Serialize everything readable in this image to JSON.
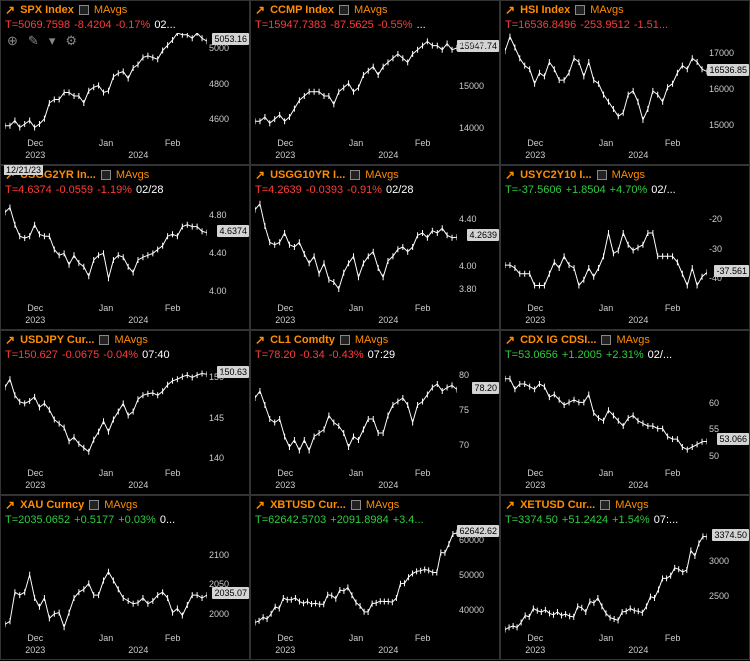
{
  "xaxis": {
    "ticks": [
      {
        "pos": 15,
        "label": "Dec"
      },
      {
        "pos": 50,
        "label": "Jan"
      },
      {
        "pos": 83,
        "label": "Feb"
      }
    ],
    "years": [
      {
        "pos": 15,
        "label": "2023"
      },
      {
        "pos": 66,
        "label": "2024"
      }
    ]
  },
  "panels": [
    {
      "symbol": "SPX Index",
      "mavgs": "MAvgs",
      "last": "T=5069.7598",
      "chg": "-8.4204",
      "pct": "-0.17%",
      "time": "02...",
      "dir": "down",
      "yticks": [
        {
          "v": 5000,
          "l": "5000"
        },
        {
          "v": 4800,
          "l": "4800"
        },
        {
          "v": 4600,
          "l": "4600"
        }
      ],
      "ylim": [
        4500,
        5100
      ],
      "tag": "5053.16",
      "tagv": 5053,
      "series": [
        4570,
        4570,
        4600,
        4560,
        4580,
        4600,
        4560,
        4580,
        4610,
        4700,
        4720,
        4720,
        4760,
        4760,
        4740,
        4740,
        4700,
        4770,
        4790,
        4800,
        4760,
        4770,
        4850,
        4870,
        4880,
        4840,
        4900,
        4920,
        4960,
        4970,
        4960,
        4950,
        5000,
        5030,
        5060,
        5100,
        5090,
        5090,
        5070,
        5100,
        5070,
        5053
      ],
      "toolbar": true,
      "datebadge": "12/21/23"
    },
    {
      "symbol": "CCMP Index",
      "mavgs": "MAvgs",
      "last": "T=15947.7383",
      "chg": "-87.5625",
      "pct": "-0.55%",
      "time": "...",
      "dir": "down",
      "yticks": [
        {
          "v": 16000,
          "l": "16000"
        },
        {
          "v": 15000,
          "l": "15000"
        },
        {
          "v": 14000,
          "l": "14000"
        }
      ],
      "ylim": [
        13800,
        16300
      ],
      "tag": "15947.74",
      "tagv": 15947,
      "series": [
        14200,
        14200,
        14300,
        14150,
        14250,
        14350,
        14200,
        14300,
        14500,
        14700,
        14800,
        14900,
        14900,
        14900,
        14800,
        14800,
        14600,
        14900,
        15000,
        15100,
        14900,
        15000,
        15300,
        15400,
        15500,
        15300,
        15500,
        15600,
        15700,
        15800,
        15700,
        15600,
        15800,
        15900,
        16000,
        16100,
        16000,
        16000,
        15900,
        16050,
        15900,
        15947
      ]
    },
    {
      "symbol": "HSI Index",
      "mavgs": "MAvgs",
      "last": "T=16536.8496",
      "chg": "-253.9512",
      "pct": "-1.51...",
      "time": "",
      "dir": "down",
      "yticks": [
        {
          "v": 17000,
          "l": "17000"
        },
        {
          "v": 16000,
          "l": "16000"
        },
        {
          "v": 15000,
          "l": "15000"
        }
      ],
      "ylim": [
        14700,
        17600
      ],
      "tag": "16536.85",
      "tagv": 16536,
      "series": [
        17100,
        17500,
        17200,
        16900,
        16700,
        16600,
        16200,
        16500,
        16400,
        16800,
        16600,
        16300,
        16300,
        16500,
        16900,
        16800,
        16400,
        16800,
        16300,
        16200,
        15900,
        15700,
        15500,
        15300,
        15400,
        15900,
        16000,
        15700,
        15200,
        15500,
        16000,
        15900,
        15700,
        16100,
        16200,
        16500,
        16700,
        16600,
        16900,
        16800,
        16600,
        16536
      ]
    },
    {
      "symbol": "USGG2YR In...",
      "mavgs": "MAvgs",
      "last": "T=4.6374",
      "chg": "-0.0559",
      "pct": "-1.19%",
      "time": "02/28",
      "dir": "down",
      "yticks": [
        {
          "v": 4.8,
          "l": "4.80"
        },
        {
          "v": 4.4,
          "l": "4.40"
        },
        {
          "v": 4.0,
          "l": "4.00"
        }
      ],
      "ylim": [
        3.9,
        5.0
      ],
      "tag": "4.6374",
      "tagv": 4.6374,
      "series": [
        4.85,
        4.9,
        4.72,
        4.6,
        4.58,
        4.6,
        4.72,
        4.62,
        4.6,
        4.6,
        4.46,
        4.4,
        4.42,
        4.3,
        4.4,
        4.32,
        4.28,
        4.18,
        4.35,
        4.4,
        4.42,
        4.16,
        4.35,
        4.4,
        4.38,
        4.28,
        4.22,
        4.35,
        4.38,
        4.4,
        4.42,
        4.46,
        4.5,
        4.6,
        4.62,
        4.6,
        4.7,
        4.72,
        4.7,
        4.7,
        4.65,
        4.6374
      ]
    },
    {
      "symbol": "USGG10YR I...",
      "mavgs": "MAvgs",
      "last": "T=4.2639",
      "chg": "-0.0393",
      "pct": "-0.91%",
      "time": "02/28",
      "dir": "down",
      "yticks": [
        {
          "v": 4.4,
          "l": "4.40"
        },
        {
          "v": 4.0,
          "l": "4.00"
        },
        {
          "v": 3.8,
          "l": "3.80"
        }
      ],
      "ylim": [
        3.7,
        4.6
      ],
      "tag": "4.2639",
      "tagv": 4.2639,
      "series": [
        4.5,
        4.55,
        4.36,
        4.22,
        4.2,
        4.22,
        4.3,
        4.2,
        4.18,
        4.22,
        4.12,
        4.04,
        4.1,
        3.95,
        4.04,
        3.9,
        3.88,
        3.82,
        3.96,
        4.04,
        4.1,
        3.92,
        4.04,
        4.1,
        4.14,
        4.0,
        3.92,
        4.06,
        4.1,
        4.16,
        4.18,
        4.14,
        4.18,
        4.28,
        4.3,
        4.26,
        4.32,
        4.3,
        4.34,
        4.28,
        4.26,
        4.2639
      ]
    },
    {
      "symbol": "USYC2Y10 I...",
      "mavgs": "MAvgs",
      "last": "T=-37.5606",
      "chg": "+1.8504",
      "pct": "+4.70%",
      "time": "02/...",
      "dir": "up",
      "yticks": [
        {
          "v": -20,
          "l": "-20"
        },
        {
          "v": -30,
          "l": "-30"
        },
        {
          "v": -40,
          "l": "-40"
        }
      ],
      "ylim": [
        -48,
        -12
      ],
      "tag": "-37.561",
      "tagv": -37.561,
      "series": [
        -35,
        -35,
        -36,
        -38,
        -38,
        -38,
        -42,
        -42,
        -42,
        -38,
        -34,
        -36,
        -32,
        -35,
        -36,
        -42,
        -40,
        -36,
        -39,
        -36,
        -32,
        -24,
        -31,
        -30,
        -24,
        -28,
        -30,
        -29,
        -28,
        -24,
        -24,
        -32,
        -32,
        -32,
        -32,
        -34,
        -38,
        -42,
        -36,
        -42,
        -39,
        -37.5
      ]
    },
    {
      "symbol": "USDJPY Cur...",
      "mavgs": "MAvgs",
      "last": "T=150.627",
      "chg": "-0.0675",
      "pct": "-0.04%",
      "time": "07:40",
      "dir": "down",
      "yticks": [
        {
          "v": 150,
          "l": "150"
        },
        {
          "v": 145,
          "l": "145"
        },
        {
          "v": 140,
          "l": "140"
        }
      ],
      "ylim": [
        139,
        152
      ],
      "tag": "150.63",
      "tagv": 150.63,
      "series": [
        149,
        150,
        148,
        147.2,
        147,
        147.3,
        147.8,
        146.5,
        147,
        146.2,
        145,
        144.5,
        144,
        142.3,
        142.8,
        142,
        141.5,
        141,
        142.5,
        143.5,
        144.8,
        143.5,
        145,
        146,
        147,
        145.5,
        146,
        147.5,
        148,
        148.2,
        148.3,
        148,
        148.5,
        149.3,
        149.8,
        150,
        150.3,
        150.5,
        150.2,
        150.5,
        150.7,
        150.6
      ]
    },
    {
      "symbol": "CL1 Comdty",
      "mavgs": "MAvgs",
      "last": "T=78.20",
      "chg": "-0.34",
      "pct": "-0.43%",
      "time": "07:29",
      "dir": "down",
      "yticks": [
        {
          "v": 80,
          "l": "80"
        },
        {
          "v": 75,
          "l": "75"
        },
        {
          "v": 70,
          "l": "70"
        }
      ],
      "ylim": [
        67,
        82
      ],
      "tag": "78.20",
      "tagv": 78.2,
      "series": [
        77,
        78,
        76,
        74,
        73.5,
        74,
        71.5,
        70,
        71,
        69.5,
        71,
        69.5,
        71.5,
        72,
        72.5,
        74.5,
        73.5,
        73,
        72,
        70,
        71.5,
        71,
        72.5,
        74,
        74,
        72,
        72,
        74.5,
        76,
        76.5,
        77,
        76,
        73.5,
        76,
        76.5,
        77.5,
        78.5,
        79,
        78,
        78.5,
        78.8,
        78.2
      ]
    },
    {
      "symbol": "CDX IG CDSI...",
      "mavgs": "MAvgs",
      "last": "T=53.0656",
      "chg": "+1.2005",
      "pct": "+2.31%",
      "time": "02/...",
      "dir": "up",
      "yticks": [
        {
          "v": 60,
          "l": "60"
        },
        {
          "v": 55,
          "l": "55"
        },
        {
          "v": 50,
          "l": "50"
        }
      ],
      "ylim": [
        48,
        68
      ],
      "tag": "53.066",
      "tagv": 53.066,
      "series": [
        65,
        65,
        63,
        64,
        64,
        63.5,
        63,
        64,
        63.5,
        61.5,
        62,
        61,
        60,
        60.5,
        61,
        60.5,
        60.5,
        62,
        58.5,
        57.5,
        57,
        59,
        58,
        57,
        56,
        57.5,
        58,
        57,
        56.5,
        56,
        56,
        55.5,
        55.5,
        54,
        53.5,
        53.5,
        52,
        51.5,
        52,
        52.5,
        53,
        53.07
      ]
    },
    {
      "symbol": "XAU Curncy",
      "mavgs": "MAvgs",
      "last": "T=2035.0652",
      "chg": "+0.5177",
      "pct": "+0.03%",
      "time": "0...",
      "dir": "up",
      "yticks": [
        {
          "v": 2100,
          "l": "2100"
        },
        {
          "v": 2050,
          "l": "2050"
        },
        {
          "v": 2000,
          "l": "2000"
        }
      ],
      "ylim": [
        1970,
        2150
      ],
      "tag": "2035.07",
      "tagv": 2035,
      "series": [
        1985,
        1990,
        2040,
        2035,
        2040,
        2070,
        2030,
        2015,
        2030,
        1995,
        2003,
        2005,
        1980,
        2005,
        2030,
        2040,
        2045,
        2055,
        2035,
        2035,
        2060,
        2075,
        2060,
        2045,
        2030,
        2025,
        2020,
        2022,
        2030,
        2020,
        2025,
        2035,
        2040,
        2030,
        2005,
        2012,
        2000,
        2018,
        2035,
        2035,
        2030,
        2035
      ]
    },
    {
      "symbol": "XBTUSD Cur...",
      "mavgs": "MAvgs",
      "last": "T=62642.5703",
      "chg": "+2091.8984",
      "pct": "+3.4...",
      "time": "",
      "dir": "up",
      "yticks": [
        {
          "v": 60000,
          "l": "60000"
        },
        {
          "v": 50000,
          "l": "50000"
        },
        {
          "v": 40000,
          "l": "40000"
        }
      ],
      "ylim": [
        34000,
        64000
      ],
      "tag": "62642.62",
      "tagv": 62642,
      "series": [
        37000,
        37500,
        38500,
        38000,
        39500,
        41500,
        41000,
        44000,
        43500,
        43500,
        44000,
        43000,
        42500,
        43000,
        42300,
        42500,
        42200,
        42200,
        44900,
        44700,
        43800,
        46300,
        46000,
        47000,
        44800,
        42700,
        41700,
        40100,
        40000,
        42400,
        42600,
        43100,
        43000,
        43000,
        42800,
        44000,
        48100,
        48200,
        49900,
        51000,
        51600,
        51800,
        52150,
        51900,
        51300,
        51300,
        57000,
        56900,
        59400,
        62300,
        62642
      ]
    },
    {
      "symbol": "XETUSD Cur...",
      "mavgs": "MAvgs",
      "last": "T=3374.50",
      "chg": "+51.2424",
      "pct": "+1.54%",
      "time": "07:...",
      "dir": "up",
      "yticks": [
        {
          "v": 3000,
          "l": "3000"
        },
        {
          "v": 2500,
          "l": "2500"
        }
      ],
      "ylim": [
        2000,
        3500
      ],
      "tag": "3374.50",
      "tagv": 3374,
      "series": [
        2050,
        2080,
        2100,
        2080,
        2150,
        2250,
        2230,
        2350,
        2320,
        2300,
        2330,
        2280,
        2260,
        2300,
        2250,
        2270,
        2240,
        2230,
        2380,
        2360,
        2300,
        2450,
        2430,
        2500,
        2380,
        2280,
        2220,
        2200,
        2180,
        2300,
        2310,
        2350,
        2320,
        2310,
        2290,
        2380,
        2520,
        2500,
        2620,
        2780,
        2780,
        2820,
        2930,
        2910,
        2870,
        2900,
        3180,
        3100,
        3280,
        3380,
        3374
      ]
    }
  ]
}
